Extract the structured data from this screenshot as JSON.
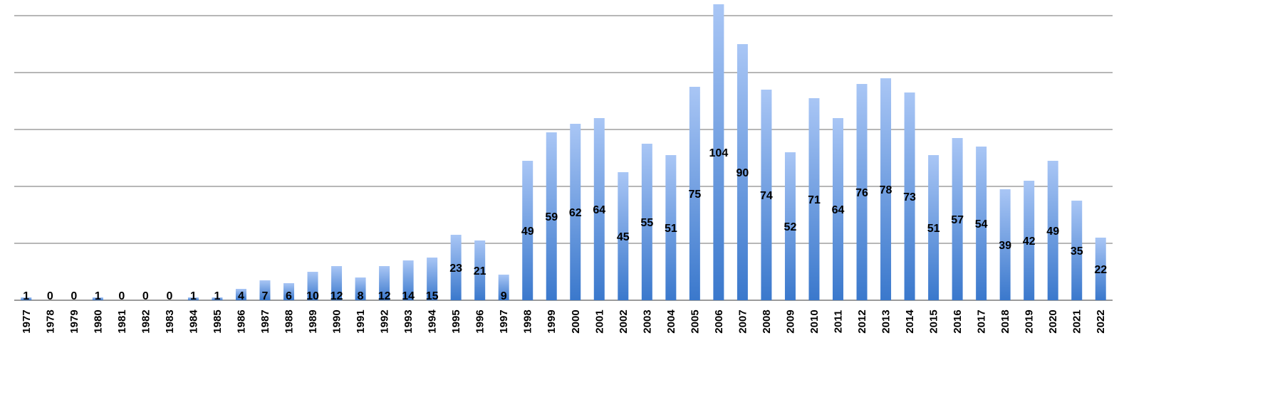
{
  "chart_data": {
    "type": "bar",
    "title": "",
    "xlabel": "",
    "ylabel": "",
    "categories": [
      "1977",
      "1978",
      "1979",
      "1980",
      "1981",
      "1982",
      "1983",
      "1984",
      "1985",
      "1986",
      "1987",
      "1988",
      "1989",
      "1990",
      "1991",
      "1992",
      "1993",
      "1994",
      "1995",
      "1996",
      "1997",
      "1998",
      "1999",
      "2000",
      "2001",
      "2002",
      "2003",
      "2004",
      "2005",
      "2006",
      "2007",
      "2008",
      "2009",
      "2010",
      "2011",
      "2012",
      "2013",
      "2014",
      "2015",
      "2016",
      "2017",
      "2018",
      "2019",
      "2020",
      "2021",
      "2022"
    ],
    "values": [
      1,
      0,
      0,
      1,
      0,
      0,
      0,
      1,
      1,
      4,
      7,
      6,
      10,
      12,
      8,
      12,
      14,
      15,
      23,
      21,
      9,
      49,
      59,
      62,
      64,
      45,
      55,
      51,
      75,
      104,
      90,
      74,
      52,
      71,
      64,
      76,
      78,
      73,
      51,
      57,
      54,
      39,
      42,
      49,
      35,
      22
    ],
    "ylim": [
      0,
      100
    ],
    "gridlines": [
      0,
      20,
      40,
      60,
      80,
      100
    ],
    "grid": true,
    "legend": "none",
    "data_labels": true,
    "bar_color_top": "#a9c6f5",
    "bar_color_bottom": "#3a78cc",
    "grid_color": "#8c8c8c"
  }
}
